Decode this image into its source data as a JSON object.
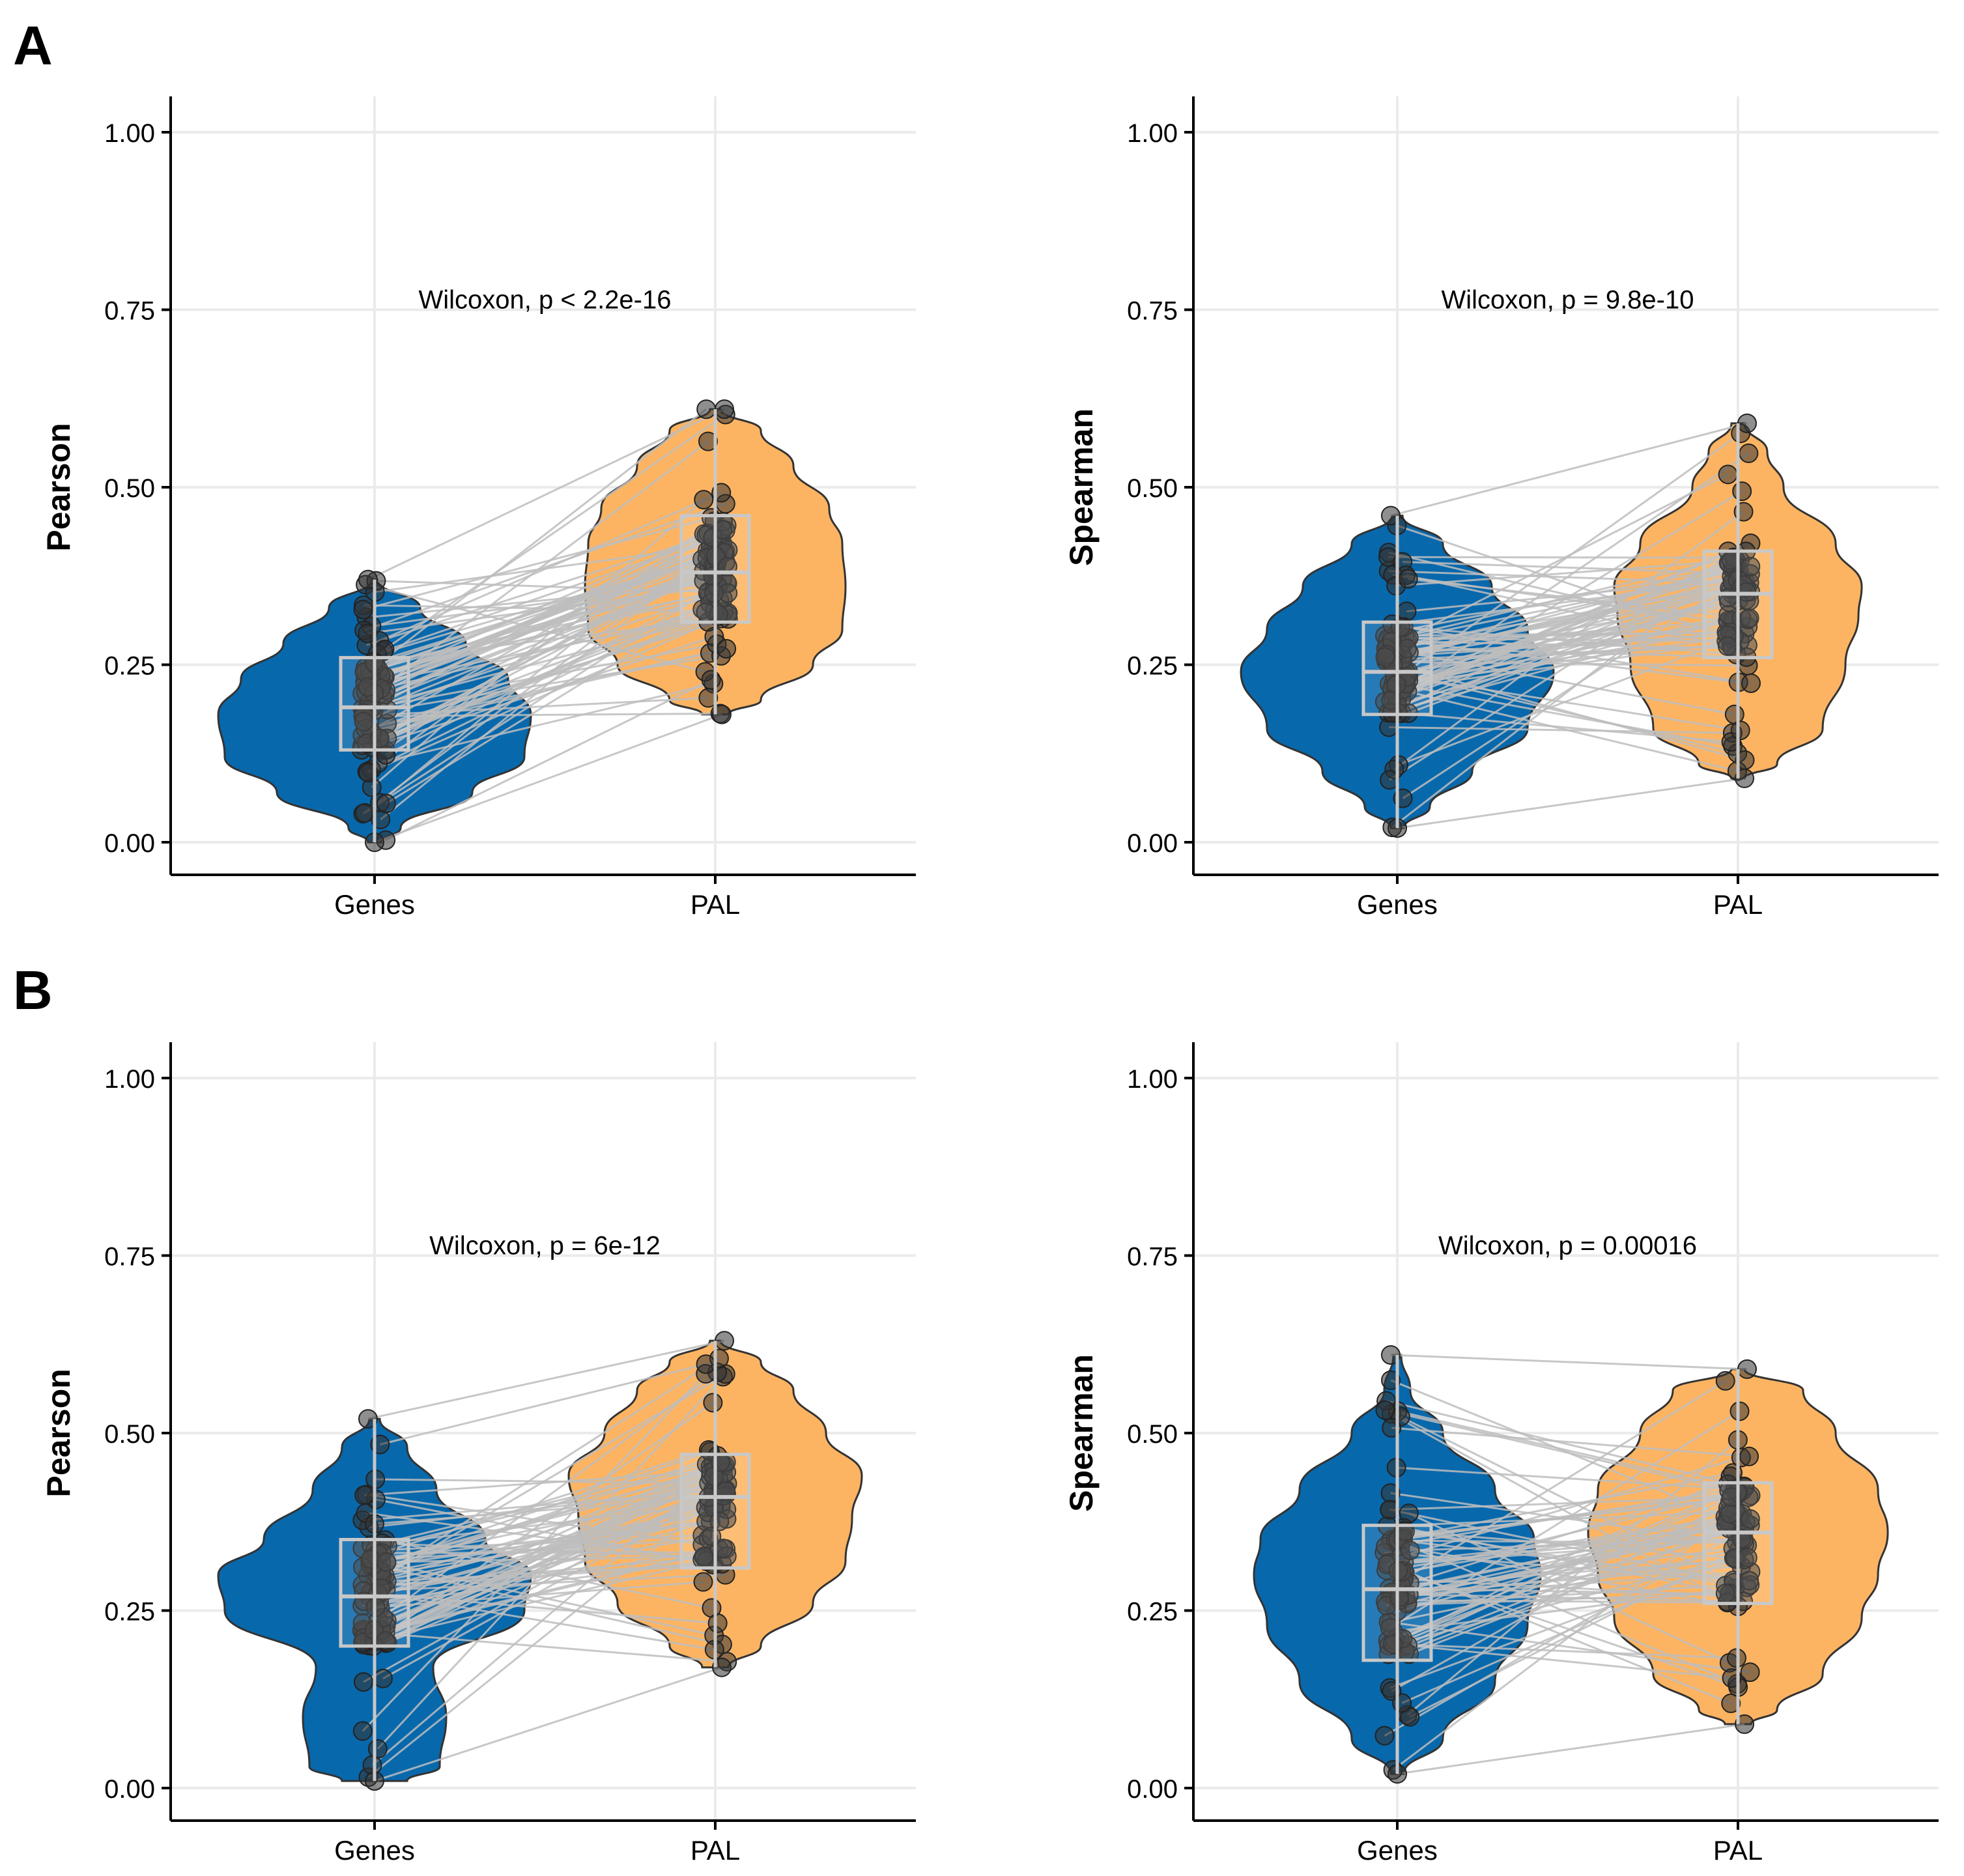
{
  "panel_labels": [
    "A",
    "B"
  ],
  "colors": {
    "genes": "#0868AC",
    "pal": "#FDB462",
    "paired_line": "#bdbdbd",
    "box": "#c8c8c8",
    "point": "#333333",
    "grid": "#ebebeb"
  },
  "chart_data": [
    {
      "type": "violin",
      "panel": "A",
      "position": "top-left",
      "title": "",
      "ylabel": "Pearson",
      "xlabel": "",
      "categories": [
        "Genes",
        "PAL"
      ],
      "ylim": [
        0,
        1
      ],
      "yticks": [
        "0.00",
        "0.25",
        "0.50",
        "0.75",
        "1.00"
      ],
      "annotation": "Wilcoxon, p < 2.2e-16",
      "grid": true,
      "series": [
        {
          "category": "Genes",
          "min": 0.0,
          "q1": 0.13,
          "median": 0.19,
          "q3": 0.26,
          "max": 0.37
        },
        {
          "category": "PAL",
          "min": 0.18,
          "q1": 0.31,
          "median": 0.38,
          "q3": 0.46,
          "max": 0.61
        }
      ]
    },
    {
      "type": "violin",
      "panel": "A",
      "position": "top-right",
      "title": "",
      "ylabel": "Spearman",
      "xlabel": "",
      "categories": [
        "Genes",
        "PAL"
      ],
      "ylim": [
        0,
        1
      ],
      "yticks": [
        "0.00",
        "0.25",
        "0.50",
        "0.75",
        "1.00"
      ],
      "annotation": "Wilcoxon, p = 9.8e-10",
      "grid": true,
      "series": [
        {
          "category": "Genes",
          "min": 0.02,
          "q1": 0.18,
          "median": 0.24,
          "q3": 0.31,
          "max": 0.46
        },
        {
          "category": "PAL",
          "min": 0.09,
          "q1": 0.26,
          "median": 0.35,
          "q3": 0.41,
          "max": 0.59
        }
      ]
    },
    {
      "type": "violin",
      "panel": "B",
      "position": "bottom-left",
      "title": "",
      "ylabel": "Pearson",
      "xlabel": "",
      "categories": [
        "Genes",
        "PAL"
      ],
      "ylim": [
        0,
        1
      ],
      "yticks": [
        "0.00",
        "0.25",
        "0.50",
        "0.75",
        "1.00"
      ],
      "annotation": "Wilcoxon, p = 6e-12",
      "grid": true,
      "series": [
        {
          "category": "Genes",
          "min": 0.01,
          "q1": 0.2,
          "median": 0.27,
          "q3": 0.35,
          "max": 0.52
        },
        {
          "category": "PAL",
          "min": 0.17,
          "q1": 0.31,
          "median": 0.41,
          "q3": 0.47,
          "max": 0.63
        }
      ]
    },
    {
      "type": "violin",
      "panel": "B",
      "position": "bottom-right",
      "title": "",
      "ylabel": "Spearman",
      "xlabel": "",
      "categories": [
        "Genes",
        "PAL"
      ],
      "ylim": [
        0,
        1
      ],
      "yticks": [
        "0.00",
        "0.25",
        "0.50",
        "0.75",
        "1.00"
      ],
      "annotation": "Wilcoxon, p = 0.00016",
      "grid": true,
      "series": [
        {
          "category": "Genes",
          "min": 0.02,
          "q1": 0.18,
          "median": 0.28,
          "q3": 0.37,
          "max": 0.61
        },
        {
          "category": "PAL",
          "min": 0.09,
          "q1": 0.26,
          "median": 0.36,
          "q3": 0.43,
          "max": 0.59
        }
      ]
    }
  ]
}
